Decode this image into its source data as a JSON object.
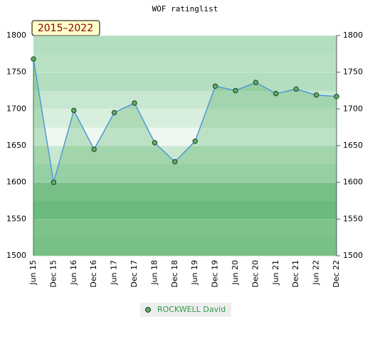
{
  "chart_data": {
    "type": "line",
    "title": "WOF ratinglist",
    "annotation": "2015–2022",
    "categories": [
      "Jun 15",
      "Dec 15",
      "Jun 16",
      "Dec 16",
      "Jun 17",
      "Dec 17",
      "Jun 18",
      "Dec 18",
      "Jun 19",
      "Dec 19",
      "Jun 20",
      "Dec 20",
      "Jun 21",
      "Dec 21",
      "Jun 22",
      "Dec 22"
    ],
    "series": [
      {
        "name": "ROCKWELL David",
        "color": "#4f9ad8",
        "marker_color": "#5fae62",
        "values": [
          1768,
          1600,
          1698,
          1645,
          1695,
          1708,
          1654,
          1628,
          1656,
          1731,
          1725,
          1736,
          1721,
          1727,
          1719,
          1717
        ]
      }
    ],
    "ylim": [
      1500,
      1800
    ],
    "yticks": [
      1500,
      1550,
      1600,
      1650,
      1700,
      1750,
      1800
    ],
    "y2lim": [
      1500,
      1800
    ],
    "y2ticks": [
      1500,
      1550,
      1600,
      1650,
      1700,
      1750,
      1800
    ],
    "grid": true
  }
}
